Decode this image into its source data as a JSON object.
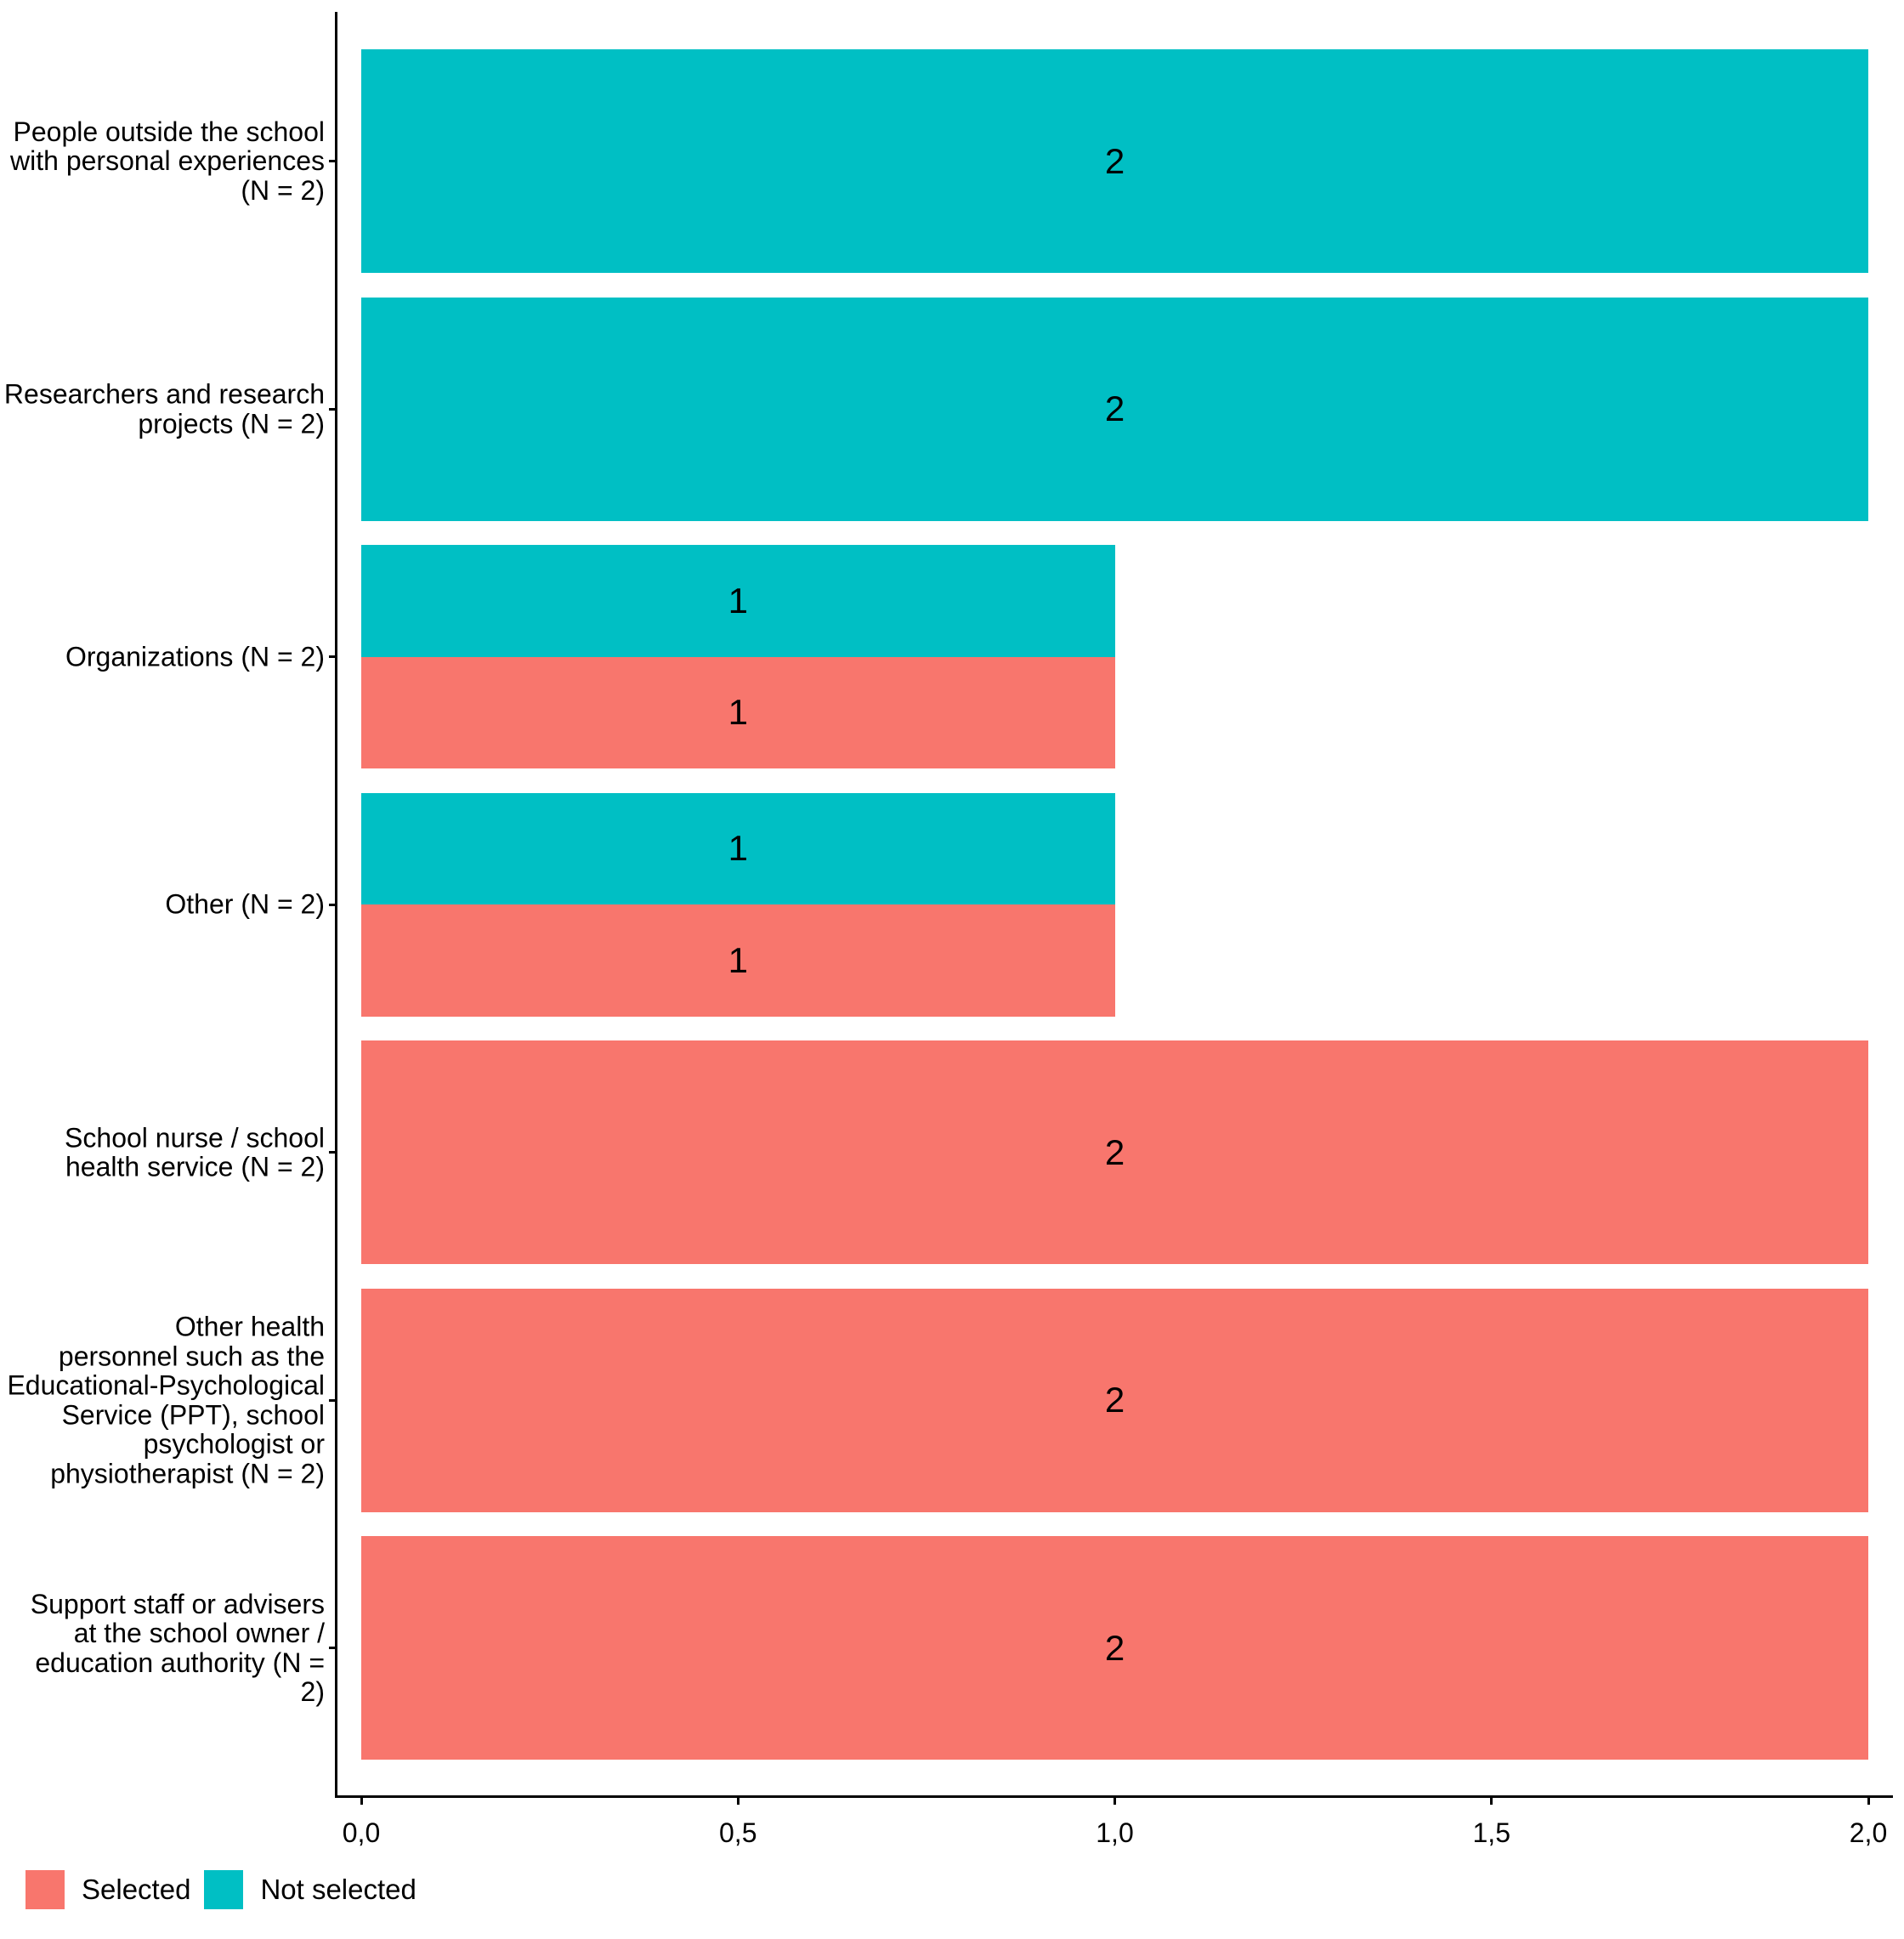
{
  "figure": {
    "background": "#FFFFFF",
    "axis_color": "#000000",
    "text_color": "#000000"
  },
  "legend": {
    "position": "bottom-left",
    "items": [
      {
        "label": "Selected",
        "color": "#F8766D"
      },
      {
        "label": "Not selected",
        "color": "#00BFC4"
      }
    ]
  },
  "x_axis": {
    "tick_labels": [
      "0,0",
      "0,5",
      "1,0",
      "1,5",
      "2,0"
    ],
    "tick_values": [
      0,
      0.5,
      1,
      1.5,
      2
    ],
    "range": [
      0,
      2
    ]
  },
  "chart_data": {
    "type": "bar",
    "orientation": "horizontal",
    "title": "",
    "xlabel": "",
    "ylabel": "",
    "xlim": [
      0,
      2
    ],
    "grid": false,
    "legend_position": "bottom-left",
    "bar_arrangement": "dodged",
    "value_labels_shown": true,
    "categories": [
      "People outside the school\nwith personal experiences\n(N = 2)",
      "Researchers and research\nprojects (N = 2)",
      "Organizations (N = 2)",
      "Other (N = 2)",
      "School nurse / school\nhealth service (N = 2)",
      "Other health\npersonnel such as the\nEducational-Psychological\nService (PPT), school\npsychologist or\nphysiotherapist (N = 2)",
      "Support staff or advisers\nat the school owner /\neducation authority (N =\n2)"
    ],
    "series": [
      {
        "name": "Selected",
        "color": "#F8766D",
        "values": [
          0,
          0,
          1,
          1,
          2,
          2,
          2
        ]
      },
      {
        "name": "Not selected",
        "color": "#00BFC4",
        "values": [
          2,
          2,
          1,
          1,
          0,
          0,
          0
        ]
      }
    ]
  }
}
